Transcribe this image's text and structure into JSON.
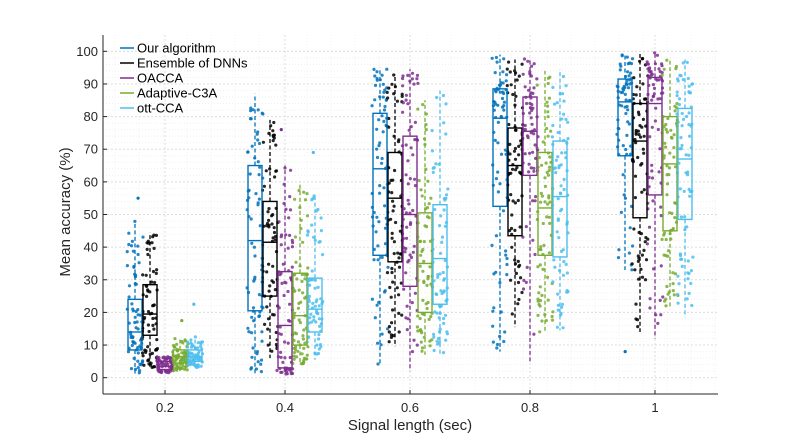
{
  "chart_data": {
    "type": "box",
    "title": "",
    "xlabel": "Signal length (sec)",
    "ylabel": "Mean accuracy (%)",
    "ylim": [
      -5,
      105
    ],
    "yticks": [
      0,
      10,
      20,
      30,
      40,
      50,
      60,
      70,
      80,
      90,
      100
    ],
    "grid": true,
    "minor_grid": true,
    "legend_position": "top-left",
    "categories": [
      "0.2",
      "0.4",
      "0.6",
      "0.8",
      "1"
    ],
    "series": [
      {
        "name": "Our algorithm",
        "color": "#0072BD",
        "boxes": [
          {
            "whisker_low": 0.5,
            "q1": 8.5,
            "median": 14,
            "q3": 24,
            "whisker_high": 48,
            "outliers": [
              55
            ]
          },
          {
            "whisker_low": 1,
            "q1": 20.5,
            "median": 42,
            "q3": 65,
            "whisker_high": 87,
            "outliers": []
          },
          {
            "whisker_low": 4,
            "q1": 37.5,
            "median": 64,
            "q3": 81,
            "whisker_high": 95,
            "outliers": []
          },
          {
            "whisker_low": 8,
            "q1": 52.5,
            "median": 79.5,
            "q3": 88.5,
            "whisker_high": 99,
            "outliers": []
          },
          {
            "whisker_low": 33,
            "q1": 68,
            "median": 84.5,
            "q3": 91.5,
            "whisker_high": 99.5,
            "outliers": [
              8
            ]
          }
        ]
      },
      {
        "name": "Ensemble of DNNs",
        "color": "#000000",
        "boxes": [
          {
            "whisker_low": 3,
            "q1": 13,
            "median": 19.5,
            "q3": 28.5,
            "whisker_high": 44.5,
            "outliers": []
          },
          {
            "whisker_low": 6,
            "q1": 25,
            "median": 41.5,
            "q3": 54,
            "whisker_high": 79,
            "outliers": []
          },
          {
            "whisker_low": 9.5,
            "q1": 35.5,
            "median": 55,
            "q3": 69,
            "whisker_high": 93,
            "outliers": []
          },
          {
            "whisker_low": 15.5,
            "q1": 43.5,
            "median": 65,
            "q3": 76.5,
            "whisker_high": 97.5,
            "outliers": []
          },
          {
            "whisker_low": 14,
            "q1": 49,
            "median": 72.5,
            "q3": 84,
            "whisker_high": 99.5,
            "outliers": []
          }
        ]
      },
      {
        "name": "OACCA",
        "color": "#7E2F8E",
        "boxes": [
          {
            "whisker_low": 1.5,
            "q1": 2.5,
            "median": 3.5,
            "q3": 5,
            "whisker_high": 6.5,
            "outliers": []
          },
          {
            "whisker_low": 1,
            "q1": 3,
            "median": 16,
            "q3": 32.5,
            "whisker_high": 65,
            "outliers": [
              76
            ]
          },
          {
            "whisker_low": 2,
            "q1": 28,
            "median": 50,
            "q3": 74,
            "whisker_high": 94.5,
            "outliers": []
          },
          {
            "whisker_low": 5,
            "q1": 62,
            "median": 75.5,
            "q3": 86,
            "whisker_high": 98,
            "outliers": []
          },
          {
            "whisker_low": 12,
            "q1": 56,
            "median": 84,
            "q3": 92,
            "whisker_high": 100,
            "outliers": []
          }
        ]
      },
      {
        "name": "Adaptive-C3A",
        "color": "#77AC30",
        "boxes": [
          {
            "whisker_low": 2,
            "q1": 4.5,
            "median": 6.5,
            "q3": 8.5,
            "whisker_high": 12,
            "outliers": [
              17.5
            ]
          },
          {
            "whisker_low": 4,
            "q1": 10,
            "median": 19,
            "q3": 32,
            "whisker_high": 60,
            "outliers": []
          },
          {
            "whisker_low": 7,
            "q1": 20,
            "median": 35,
            "q3": 50.5,
            "whisker_high": 85,
            "outliers": []
          },
          {
            "whisker_low": 14,
            "q1": 37.5,
            "median": 52,
            "q3": 69,
            "whisker_high": 94,
            "outliers": []
          },
          {
            "whisker_low": 21,
            "q1": 45,
            "median": 65.5,
            "q3": 80,
            "whisker_high": 98,
            "outliers": []
          }
        ]
      },
      {
        "name": "ott-CCA",
        "color": "#4DBEEE",
        "boxes": [
          {
            "whisker_low": 3,
            "q1": 5,
            "median": 6.5,
            "q3": 8.5,
            "whisker_high": 12.5,
            "outliers": [
              22.5
            ]
          },
          {
            "whisker_low": 5.5,
            "q1": 14,
            "median": 21,
            "q3": 30.5,
            "whisker_high": 56,
            "outliers": [
              69
            ]
          },
          {
            "whisker_low": 7,
            "q1": 22.5,
            "median": 36.5,
            "q3": 53,
            "whisker_high": 88,
            "outliers": []
          },
          {
            "whisker_low": 14.5,
            "q1": 37,
            "median": 55.5,
            "q3": 72.5,
            "whisker_high": 94.5,
            "outliers": []
          },
          {
            "whisker_low": 18.5,
            "q1": 48.5,
            "median": 67,
            "q3": 82.5,
            "whisker_high": 97.5,
            "outliers": []
          }
        ]
      }
    ]
  }
}
